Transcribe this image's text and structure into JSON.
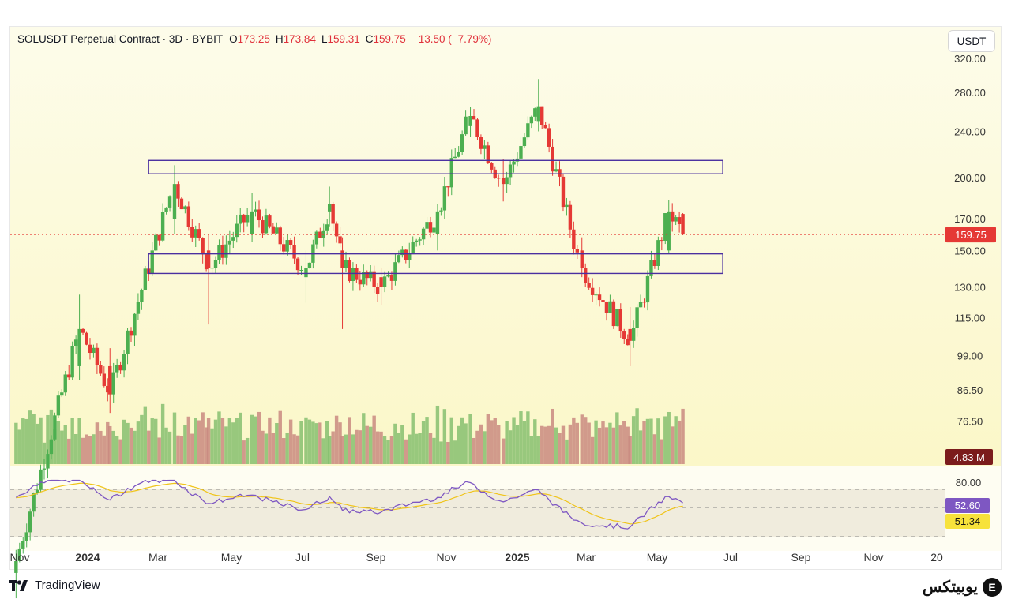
{
  "header": {
    "symbol": "SOLUSDT Perpetual Contract · 3D · BYBIT",
    "o_label": "O",
    "o_value": "173.25",
    "h_label": "H",
    "h_value": "173.84",
    "l_label": "L",
    "l_value": "159.31",
    "c_label": "C",
    "c_value": "159.75",
    "change": "−13.50 (−7.79%)"
  },
  "currency_button": "USDT",
  "footer": {
    "brand": "TradingView",
    "watermark": "یوبیتکس",
    "watermark_logo": "E"
  },
  "colors": {
    "up": "#4caf50",
    "down": "#e53935",
    "box": "#4a2fa0",
    "rsi": "#7e57c2",
    "rsi_ma": "#f0c419",
    "price_line": "#e53935"
  },
  "chart_data": {
    "type": "candlestick",
    "interval": "3D",
    "price_axis": {
      "scale": "log",
      "ticks": [
        "320.00",
        "280.00",
        "240.00",
        "200.00",
        "170.00",
        "150.00",
        "130.00",
        "115.00",
        "99.00",
        "86.50",
        "76.50"
      ]
    },
    "last_price": "159.75",
    "volume_label": "4.83 M",
    "x_ticks": [
      "Nov",
      "2024",
      "Mar",
      "May",
      "Jul",
      "Sep",
      "Nov",
      "2025",
      "Mar",
      "May",
      "Jul",
      "Sep",
      "Nov",
      "20"
    ],
    "zones": [
      {
        "top": 214,
        "bottom": 203
      },
      {
        "top": 148,
        "bottom": 137
      }
    ],
    "key_candles": [
      {
        "date": "2023-11-01",
        "open": 42,
        "high": 46,
        "low": 38,
        "close": 44
      },
      {
        "date": "2023-12-25",
        "open": 95,
        "high": 126,
        "low": 90,
        "close": 110
      },
      {
        "date": "2024-01-20",
        "open": 95,
        "high": 102,
        "low": 79,
        "close": 85
      },
      {
        "date": "2024-03-15",
        "open": 170,
        "high": 210,
        "low": 160,
        "close": 195
      },
      {
        "date": "2024-04-13",
        "open": 150,
        "high": 160,
        "low": 112,
        "close": 140
      },
      {
        "date": "2024-05-20",
        "open": 160,
        "high": 188,
        "low": 155,
        "close": 175
      },
      {
        "date": "2024-07-05",
        "open": 135,
        "high": 150,
        "low": 122,
        "close": 140
      },
      {
        "date": "2024-07-25",
        "open": 175,
        "high": 193,
        "low": 165,
        "close": 180
      },
      {
        "date": "2024-08-05",
        "open": 150,
        "high": 158,
        "low": 110,
        "close": 140
      },
      {
        "date": "2024-09-07",
        "open": 135,
        "high": 140,
        "low": 121,
        "close": 130
      },
      {
        "date": "2024-10-25",
        "open": 160,
        "high": 180,
        "low": 150,
        "close": 175
      },
      {
        "date": "2024-11-22",
        "open": 245,
        "high": 264,
        "low": 235,
        "close": 255
      },
      {
        "date": "2024-12-20",
        "open": 200,
        "high": 215,
        "low": 182,
        "close": 195
      },
      {
        "date": "2025-01-19",
        "open": 250,
        "high": 295,
        "low": 240,
        "close": 265
      },
      {
        "date": "2025-02-25",
        "open": 150,
        "high": 158,
        "low": 135,
        "close": 140
      },
      {
        "date": "2025-04-07",
        "open": 110,
        "high": 120,
        "low": 95,
        "close": 105
      },
      {
        "date": "2025-05-10",
        "open": 150,
        "high": 183,
        "low": 148,
        "close": 175
      },
      {
        "date": "2025-05-22",
        "open": 173.25,
        "high": 173.84,
        "low": 159.31,
        "close": 159.75
      }
    ],
    "rsi": {
      "axis_tick": "80.00",
      "value": "52.60",
      "ma_value": "51.34"
    }
  }
}
